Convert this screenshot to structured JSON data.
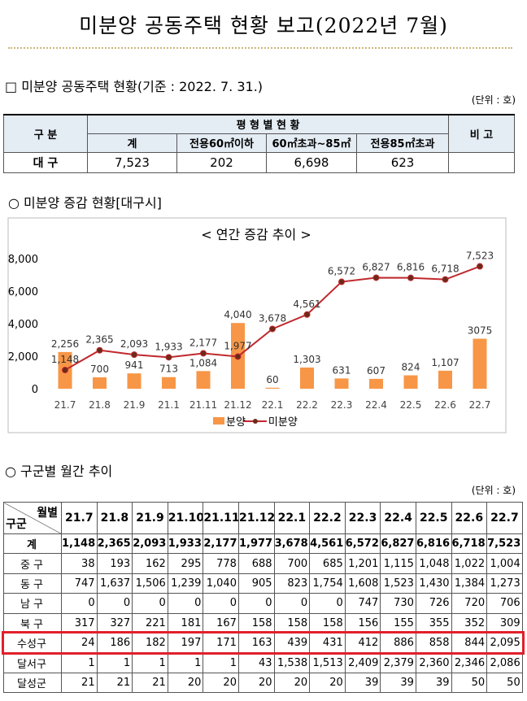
{
  "header": {
    "title": "미분양 공동주택 현황 보고(2022년 7월)"
  },
  "summary": {
    "heading": "□ 미분양 공동주택 현황(기준 : 2022. 7. 31.)",
    "unit": "(단위 : 호)",
    "table": {
      "corner": "구 분",
      "group": "평 형 별 현 황",
      "note": "비 고",
      "columns": [
        "계",
        "전용60㎡이하",
        "60㎡초과~85㎡",
        "전용85㎡초과"
      ],
      "rows": [
        {
          "label": "대 구",
          "cells": [
            "7,523",
            "202",
            "6,698",
            "623"
          ]
        }
      ]
    }
  },
  "trend": {
    "heading": "○ 미분양 증감 현황[대구시]"
  },
  "chart_data": {
    "type": "bar_line",
    "title": "< 연간 증감 추이 >",
    "categories": [
      "21.7",
      "21.8",
      "21.9",
      "21.1",
      "21.11",
      "21.12",
      "22.1",
      "22.2",
      "22.3",
      "22.4",
      "22.5",
      "22.6",
      "22.7"
    ],
    "series": [
      {
        "name": "분양",
        "type": "bar",
        "color": "#f79646",
        "values": [
          2256,
          700,
          941,
          713,
          1084,
          4040,
          60,
          1303,
          631,
          607,
          824,
          1107,
          3075
        ],
        "value_labels": [
          "2,256",
          "700",
          "941",
          "713",
          "1,084",
          "4,040",
          "60",
          "1,303",
          "631",
          "607",
          "824",
          "1,107",
          "3075"
        ]
      },
      {
        "name": "미분양",
        "type": "line",
        "color": "#c0282d",
        "values": [
          1148,
          2365,
          2093,
          1933,
          2177,
          1977,
          3678,
          4561,
          6572,
          6827,
          6816,
          6718,
          7523
        ],
        "value_labels": [
          "1,148",
          "2,365",
          "2,093",
          "1,933",
          "2,177",
          "1,977",
          "3,678",
          "4,561",
          "6,572",
          "6,827",
          "6,816",
          "6,718",
          "7,523"
        ]
      }
    ],
    "ylim": [
      0,
      8000
    ],
    "yticks": [
      0,
      {
        "value": 2000,
        "label": "2,000"
      },
      {
        "value": 4000,
        "label": "4,000"
      },
      {
        "value": 6000,
        "label": "6,000"
      },
      {
        "value": 8000,
        "label": "8,000"
      }
    ],
    "grid": false,
    "legend": "bottom"
  },
  "monthly": {
    "heading": "○ 구군별 월간 추이",
    "unit": "(단위 : 호)",
    "corner_top": "월별",
    "corner_bottom": "구군",
    "columns": [
      "21.7",
      "21.8",
      "21.9",
      "21.10",
      "21.11",
      "21.12",
      "22.1",
      "22.2",
      "22.3",
      "22.4",
      "22.5",
      "22.6",
      "22.7"
    ],
    "rows": [
      {
        "label": "계",
        "cells": [
          "1,148",
          "2,365",
          "2,093",
          "1,933",
          "2,177",
          "1,977",
          "3,678",
          "4,561",
          "6,572",
          "6,827",
          "6,816",
          "6,718",
          "7,523"
        ]
      },
      {
        "label": "중 구",
        "cells": [
          "38",
          "193",
          "162",
          "295",
          "778",
          "688",
          "700",
          "685",
          "1,201",
          "1,115",
          "1,048",
          "1,022",
          "1,004"
        ]
      },
      {
        "label": "동 구",
        "cells": [
          "747",
          "1,637",
          "1,506",
          "1,239",
          "1,040",
          "905",
          "823",
          "1,754",
          "1,608",
          "1,523",
          "1,430",
          "1,384",
          "1,273"
        ]
      },
      {
        "label": "남 구",
        "cells": [
          "0",
          "0",
          "0",
          "0",
          "0",
          "0",
          "0",
          "0",
          "747",
          "730",
          "726",
          "720",
          "706"
        ]
      },
      {
        "label": "북 구",
        "cells": [
          "317",
          "327",
          "221",
          "181",
          "167",
          "158",
          "158",
          "158",
          "156",
          "155",
          "355",
          "352",
          "309"
        ]
      },
      {
        "label": "수성구",
        "cells": [
          "24",
          "186",
          "182",
          "197",
          "171",
          "163",
          "439",
          "431",
          "412",
          "886",
          "858",
          "844",
          "2,095"
        ]
      },
      {
        "label": "달서구",
        "cells": [
          "1",
          "1",
          "1",
          "1",
          "1",
          "43",
          "1,538",
          "1,513",
          "2,409",
          "2,379",
          "2,360",
          "2,346",
          "2,086"
        ]
      },
      {
        "label": "달성군",
        "cells": [
          "21",
          "21",
          "21",
          "20",
          "20",
          "20",
          "20",
          "20",
          "39",
          "39",
          "39",
          "50",
          "50"
        ]
      }
    ]
  }
}
